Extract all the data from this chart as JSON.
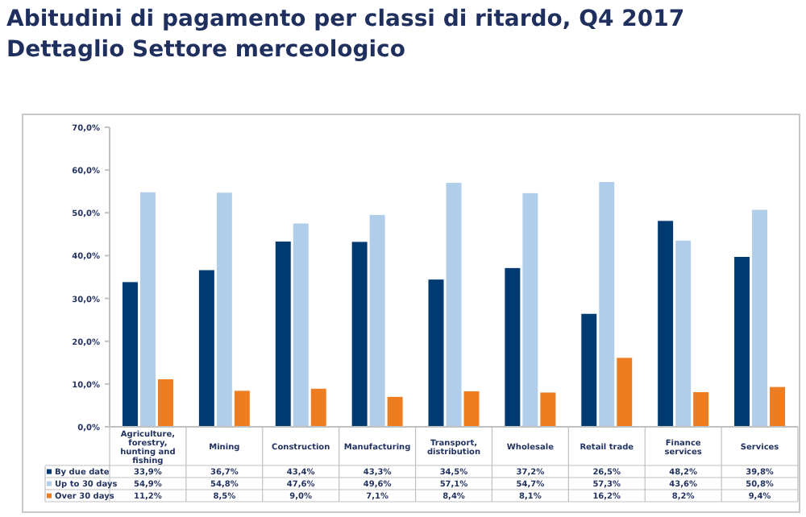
{
  "chart_data": {
    "type": "bar",
    "title": "Abitudini di pagamento per classi di ritardo, Q4 2017",
    "subtitle": "Dettaglio Settore merceologico",
    "categories": [
      "Agriculture, forestry, hunting and fishing",
      "Mining",
      "Construction",
      "Manufacturing",
      "Transport, distribution",
      "Wholesale",
      "Retail trade",
      "Finance services",
      "Services"
    ],
    "series": [
      {
        "name": "By due date",
        "color": "#003a70",
        "values": [
          33.9,
          36.7,
          43.4,
          43.3,
          34.5,
          37.2,
          26.5,
          48.2,
          39.8
        ],
        "value_labels": [
          "33,9%",
          "36,7%",
          "43,4%",
          "43,3%",
          "34,5%",
          "37,2%",
          "26,5%",
          "48,2%",
          "39,8%"
        ]
      },
      {
        "name": "Up to 30 days",
        "color": "#b0cde9",
        "values": [
          54.9,
          54.8,
          47.6,
          49.6,
          57.1,
          54.7,
          57.3,
          43.6,
          50.8
        ],
        "value_labels": [
          "54,9%",
          "54,8%",
          "47,6%",
          "49,6%",
          "57,1%",
          "54,7%",
          "57,3%",
          "43,6%",
          "50,8%"
        ]
      },
      {
        "name": "Over 30 days",
        "color": "#ee7d22",
        "values": [
          11.2,
          8.5,
          9.0,
          7.1,
          8.4,
          8.1,
          16.2,
          8.2,
          9.4
        ],
        "value_labels": [
          "11,2%",
          "8,5%",
          "9,0%",
          "7,1%",
          "8,4%",
          "8,1%",
          "16,2%",
          "8,2%",
          "9,4%"
        ]
      }
    ],
    "ylim": [
      0,
      70
    ],
    "yticks": [
      {
        "value": 0,
        "label": "0,0%"
      },
      {
        "value": 10,
        "label": "10,0%"
      },
      {
        "value": 20,
        "label": "20,0%"
      },
      {
        "value": 30,
        "label": "30,0%"
      },
      {
        "value": 40,
        "label": "40,0%"
      },
      {
        "value": 50,
        "label": "50,0%"
      },
      {
        "value": 60,
        "label": "60,0%"
      },
      {
        "value": 70,
        "label": "70,0%"
      }
    ],
    "legend": "bottom left"
  }
}
